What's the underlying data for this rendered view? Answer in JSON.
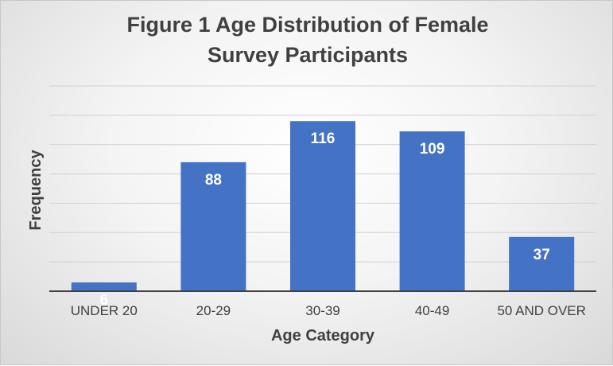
{
  "chart_data": {
    "type": "bar",
    "title": "Figure 1 Age Distribution of Female Survey Participants",
    "title_lines": [
      "Figure 1 Age Distribution of Female",
      "Survey Participants"
    ],
    "xlabel": "Age Category",
    "ylabel": "Frequency",
    "categories": [
      "UNDER 20",
      "20-29",
      "30-39",
      "40-49",
      "50 AND OVER"
    ],
    "values": [
      6,
      88,
      116,
      109,
      37
    ],
    "ylim": [
      0,
      140
    ],
    "y_axis_tick_labels_shown": false,
    "grid": true,
    "legend": "none",
    "data_labels": true,
    "bar_color": "#4472C4",
    "data_label_color": "#ffffff"
  }
}
